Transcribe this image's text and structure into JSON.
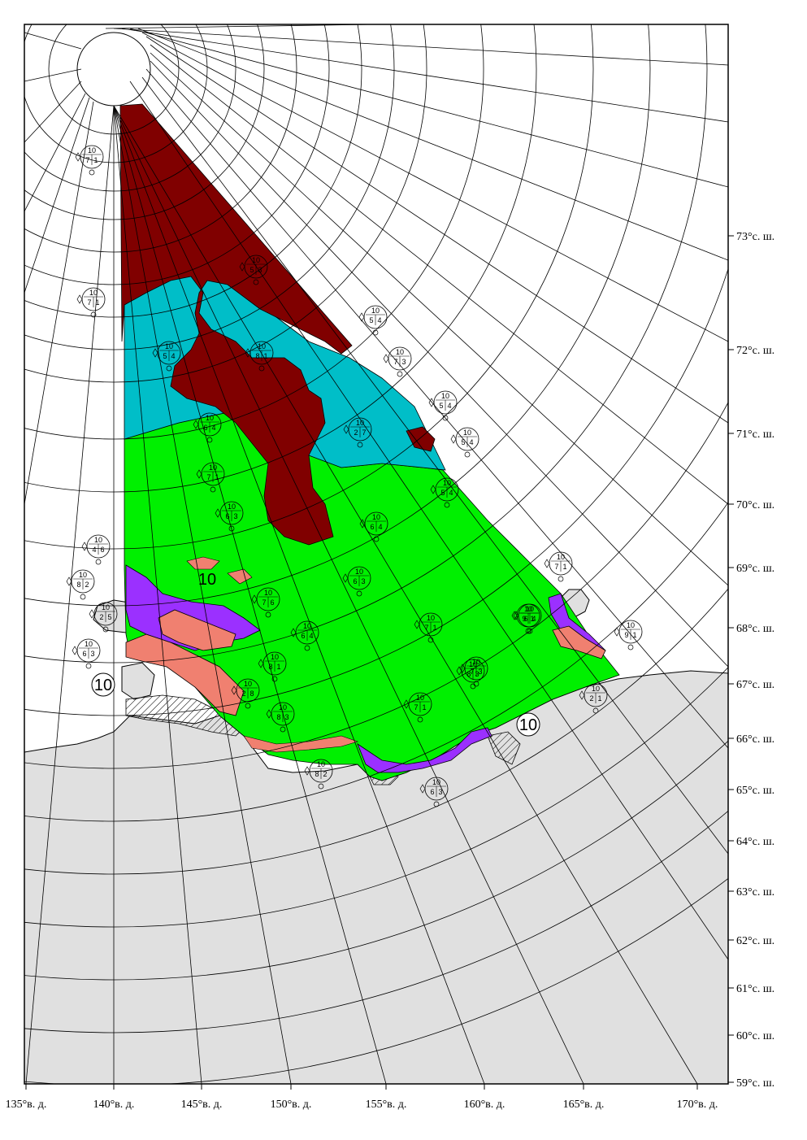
{
  "map": {
    "latitude_labels": [
      "73°с. ш.",
      "72°с. ш.",
      "71°с. ш.",
      "70°с. ш.",
      "69°с. ш.",
      "68°с. ш.",
      "67°с. ш.",
      "66°с. ш.",
      "65°с. ш.",
      "64°с. ш.",
      "63°с. ш.",
      "62°с. ш.",
      "61°с. ш.",
      "60°с. ш.",
      "59°с. ш."
    ],
    "longitude_labels": [
      "135°в. д.",
      "140°в. д.",
      "145°в. д.",
      "150°в. д.",
      "155°в. д.",
      "160°в. д.",
      "165°в. д.",
      "170°в. д."
    ],
    "big_concentration_labels": [
      "10",
      "10",
      "10"
    ],
    "colors": {
      "land": "#e0e0e0",
      "dark_red_ice": "#800000",
      "cyan_ice": "#00bec8",
      "green_ice": "#00f000",
      "salmon_ice": "#f08070",
      "violet_ice": "#9b30ff",
      "grid": "#000000"
    },
    "egg_codes": [
      {
        "top": "10",
        "mid": [
          "7",
          "1"
        ]
      },
      {
        "top": "10",
        "mid": [
          "5",
          "3"
        ]
      },
      {
        "top": "10",
        "mid": [
          "7",
          "1"
        ]
      },
      {
        "top": "10",
        "mid": [
          "5",
          "4"
        ]
      },
      {
        "top": "10",
        "mid": [
          "5",
          "4"
        ]
      },
      {
        "top": "10",
        "mid": [
          "8",
          "1"
        ]
      },
      {
        "top": "10",
        "mid": [
          "7",
          "3"
        ]
      },
      {
        "top": "10",
        "mid": [
          "5",
          "4"
        ]
      },
      {
        "top": "10",
        "mid": [
          "6",
          "4"
        ]
      },
      {
        "top": "10",
        "mid": [
          "2",
          "7"
        ]
      },
      {
        "top": "10",
        "mid": [
          "5",
          "4"
        ]
      },
      {
        "top": "10",
        "mid": [
          "5",
          "4"
        ]
      },
      {
        "top": "10",
        "mid": [
          "7",
          "1"
        ]
      },
      {
        "top": "10",
        "mid": [
          "6",
          "3"
        ]
      },
      {
        "top": "10",
        "mid": [
          "6",
          "4"
        ]
      },
      {
        "top": "10",
        "mid": [
          "4",
          "6"
        ]
      },
      {
        "top": "10",
        "mid": [
          "8",
          "2"
        ]
      },
      {
        "top": "10",
        "mid": [
          "7",
          "6"
        ]
      },
      {
        "top": "10",
        "mid": [
          "6",
          "3"
        ]
      },
      {
        "top": "10",
        "mid": [
          "7",
          "1"
        ]
      },
      {
        "top": "10",
        "mid": [
          "6",
          "4"
        ]
      },
      {
        "top": "10",
        "mid": [
          "7",
          "1"
        ]
      },
      {
        "top": "10",
        "mid": [
          "6",
          "4"
        ]
      },
      {
        "top": "10",
        "mid": [
          "2",
          "5"
        ]
      },
      {
        "top": "10",
        "mid": [
          "6",
          "3"
        ]
      },
      {
        "top": "10",
        "mid": [
          "8",
          "1"
        ]
      },
      {
        "top": "10",
        "mid": [
          "8",
          "3"
        ]
      },
      {
        "top": "10",
        "mid": [
          "2",
          "8"
        ]
      },
      {
        "top": "10",
        "mid": [
          "7",
          "1"
        ]
      },
      {
        "top": "10",
        "mid": [
          "2",
          "1"
        ]
      },
      {
        "top": "10",
        "mid": [
          "8",
          "3"
        ]
      },
      {
        "top": "10",
        "mid": [
          "8",
          "2"
        ]
      },
      {
        "top": "10",
        "mid": [
          "6",
          "3"
        ]
      },
      {
        "top": "10",
        "mid": [
          "9",
          "1"
        ]
      },
      {
        "top": "10",
        "mid": [
          "9",
          "1"
        ]
      },
      {
        "top": "10",
        "mid": [
          "7",
          "3"
        ]
      }
    ]
  }
}
